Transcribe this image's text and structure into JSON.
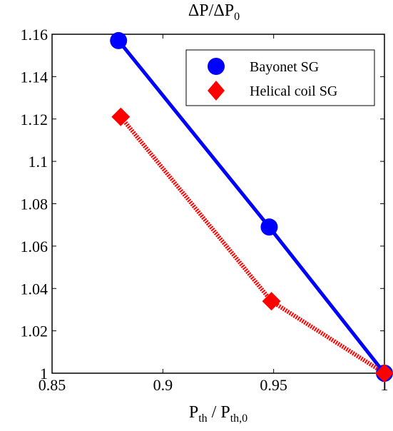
{
  "chart_data": {
    "type": "line",
    "title": "ΔP/ΔP",
    "title_sub": "0",
    "xlabel_main": "P",
    "xlabel_sub1": "th",
    "xlabel_sep": " / P",
    "xlabel_sub2": "th,0",
    "ylabel": "",
    "xlim": [
      0.85,
      1.0
    ],
    "ylim": [
      1.0,
      1.16
    ],
    "xticks": [
      0.85,
      0.9,
      0.95,
      1.0
    ],
    "xtick_labels": [
      "0.85",
      "0.9",
      "0.95",
      "1"
    ],
    "yticks": [
      1.0,
      1.02,
      1.04,
      1.06,
      1.08,
      1.1,
      1.12,
      1.14,
      1.16
    ],
    "ytick_labels": [
      "1",
      "1.02",
      "1.04",
      "1.06",
      "1.08",
      "1.1",
      "1.12",
      "1.14",
      "1.16"
    ],
    "grid": false,
    "legend_position": "top-right",
    "series": [
      {
        "name": "Bayonet SG",
        "color": "#0000ff",
        "marker": "circle",
        "line_style": "solid",
        "points": [
          {
            "x": 0.88,
            "y": 1.157
          },
          {
            "x": 0.948,
            "y": 1.069
          },
          {
            "x": 1.0,
            "y": 1.0
          }
        ]
      },
      {
        "name": "Helical coil SG",
        "color": "#ff0000",
        "marker": "diamond",
        "line_style": "dotted",
        "points": [
          {
            "x": 0.881,
            "y": 1.121
          },
          {
            "x": 0.949,
            "y": 1.034
          },
          {
            "x": 1.0,
            "y": 1.0
          }
        ]
      }
    ]
  }
}
